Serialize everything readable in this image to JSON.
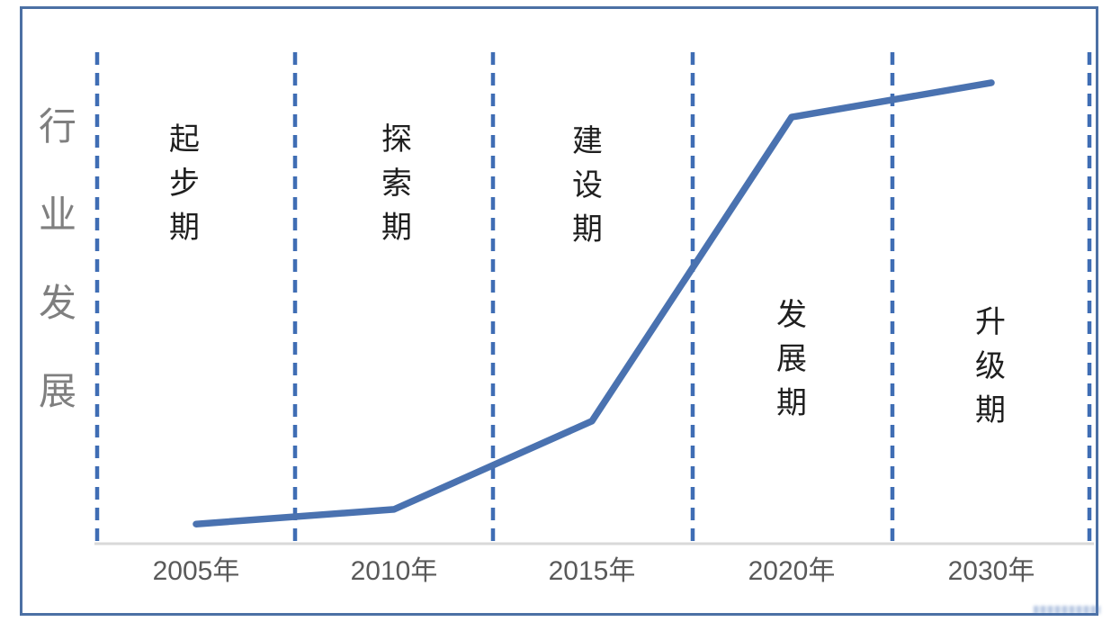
{
  "chart_data": {
    "type": "line",
    "title": "",
    "xlabel": "",
    "ylabel": "行业发展",
    "x": [
      2005,
      2010,
      2015,
      2020,
      2030
    ],
    "x_tick_labels": [
      "2005年",
      "2010年",
      "2015年",
      "2020年",
      "2030年"
    ],
    "series": [
      {
        "name": "行业发展",
        "values": [
          4,
          7,
          25,
          87,
          94
        ]
      }
    ],
    "ylim": [
      0,
      100
    ],
    "y_ticks": "none",
    "grid": "none",
    "legend": "none",
    "phases": [
      "起步期",
      "探索期",
      "建设期",
      "发展期",
      "升级期"
    ],
    "phase_divider_style": "vertical-dashed",
    "line_color": "#4a72b0",
    "divider_color": "#3f6db4",
    "axis_line_color": "#d9d9d9",
    "frame_border_color": "#4c70a4",
    "phase_label_color": "#1f1f1f",
    "x_tick_label_color": "#595959",
    "ylabel_color": "#7f7f7f"
  }
}
